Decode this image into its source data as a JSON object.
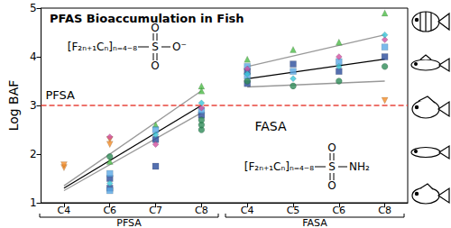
{
  "chart_data": {
    "type": "scatter",
    "title": "PFAS Bioaccumulation in Fish",
    "y_label": "Log BAF",
    "categories": [
      "C4",
      "C6",
      "C7",
      "C8",
      "C4",
      "C5",
      "C6",
      "C8"
    ],
    "category_groups": [
      {
        "label": "PFSA",
        "size": 4
      },
      {
        "label": "FASA",
        "size": 4
      }
    ],
    "ylim": [
      1,
      5
    ],
    "yticks": [
      1,
      2,
      3,
      4,
      5
    ],
    "grid": false,
    "reference_line": {
      "y": 3,
      "label": "PFSA",
      "color": "#e8453c",
      "line_style": "dashed"
    },
    "annotations": [
      "FASA"
    ],
    "structures": [
      {
        "formula": "[F₂ₙ₊₁Cₙ]ₙ₌₄₋₈",
        "atoms": [
          "S",
          "O",
          "O",
          "O⁻"
        ]
      },
      {
        "formula": "[F₂ₙ₊₁Cₙ]ₙ₌₄₋₈",
        "atoms": [
          "S",
          "O",
          "O",
          "NH₂"
        ]
      }
    ],
    "series": [
      {
        "type": "line",
        "color": "#999999",
        "line_style": "solid",
        "values": [
          1.35,
          null,
          null,
          3.3,
          null,
          null,
          null,
          null
        ]
      },
      {
        "type": "line",
        "color": "#999999",
        "line_style": "solid",
        "values": [
          1.25,
          null,
          null,
          2.85,
          null,
          null,
          null,
          null
        ]
      },
      {
        "type": "line",
        "color": "#000000",
        "line_style": "solid",
        "values": [
          1.3,
          null,
          null,
          3.0,
          null,
          null,
          null,
          null
        ]
      },
      {
        "type": "line",
        "color": "#999999",
        "line_style": "solid",
        "values": [
          null,
          null,
          null,
          null,
          3.8,
          null,
          null,
          4.45
        ]
      },
      {
        "type": "line",
        "color": "#999999",
        "line_style": "solid",
        "values": [
          null,
          null,
          null,
          null,
          3.38,
          null,
          null,
          3.5
        ]
      },
      {
        "type": "line",
        "color": "#000000",
        "line_style": "solid",
        "values": [
          null,
          null,
          null,
          null,
          3.55,
          null,
          null,
          3.95
        ]
      },
      {
        "type": "scatter",
        "color": "#f28c28",
        "marker": "triangle-down",
        "values": [
          [
            1.72,
            1.78
          ],
          [
            2.3,
            2.2
          ],
          [],
          [],
          [],
          [],
          [],
          [
            3.1
          ]
        ]
      },
      {
        "type": "scatter",
        "color": "#4cbb47",
        "marker": "triangle",
        "values": [
          [],
          [
            1.85
          ],
          [
            2.6
          ],
          [
            3.4,
            3.3
          ],
          [
            3.95
          ],
          [
            4.15
          ],
          [
            4.3
          ],
          [
            4.9
          ]
        ]
      },
      {
        "type": "scatter",
        "color": "#2b4c9b",
        "marker": "square",
        "values": [
          [],
          [
            1.3,
            1.5
          ],
          [
            1.75,
            2.3
          ],
          [
            2.8
          ],
          [
            3.7,
            3.45
          ],
          [
            3.85
          ],
          [
            3.7
          ],
          [
            4.0
          ]
        ]
      },
      {
        "type": "scatter",
        "color": "#5aa9e6",
        "marker": "square",
        "values": [
          [],
          [
            1.6,
            1.25
          ],
          [
            2.5
          ],
          [
            2.9
          ],
          [
            3.6,
            3.8
          ],
          [
            3.7
          ],
          [
            3.9
          ],
          [
            4.2
          ]
        ]
      },
      {
        "type": "scatter",
        "color": "#2e8b57",
        "marker": "circle",
        "values": [
          [],
          [
            1.95
          ],
          [],
          [
            2.5,
            2.6,
            2.7
          ],
          [
            3.5
          ],
          [
            3.4
          ],
          [
            3.5
          ],
          [
            3.8
          ]
        ]
      },
      {
        "type": "scatter",
        "color": "#d14fa0",
        "marker": "diamond",
        "values": [
          [],
          [
            2.35
          ],
          [
            2.2
          ],
          [
            2.95
          ],
          [
            3.75
          ],
          [],
          [
            4.0
          ],
          [
            4.35
          ]
        ]
      },
      {
        "type": "scatter",
        "color": "#38c5d8",
        "marker": "diamond",
        "values": [
          [],
          [
            1.4
          ],
          [
            2.4
          ],
          [
            3.05
          ],
          [
            3.65
          ],
          [
            3.55
          ],
          [
            3.8
          ],
          [
            4.45
          ]
        ]
      }
    ]
  }
}
